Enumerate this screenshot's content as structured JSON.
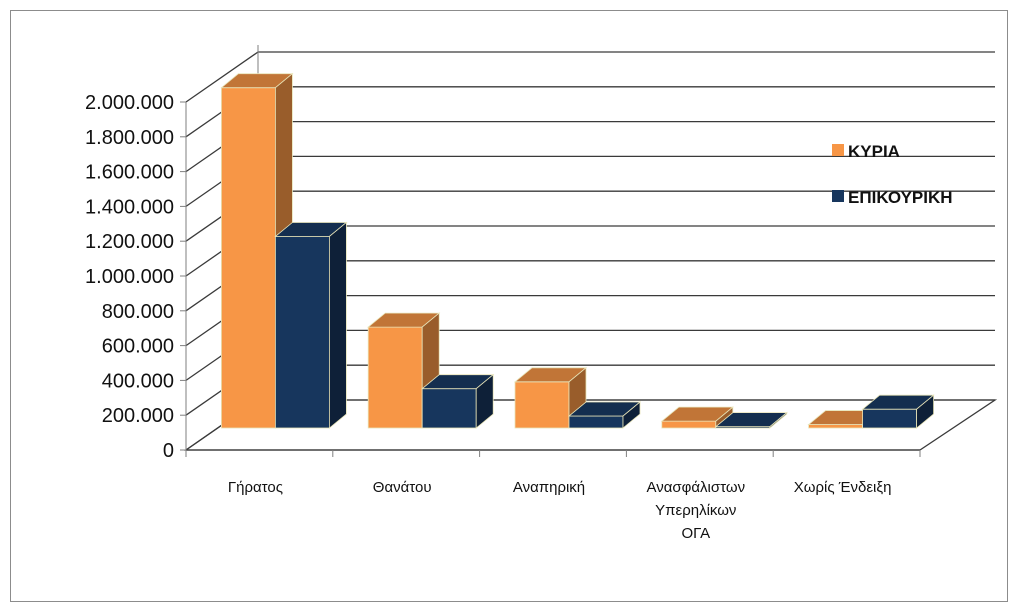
{
  "chart_data": {
    "type": "bar",
    "style": "3d-clustered-column",
    "categories": [
      [
        "Γήρατος"
      ],
      [
        "Θανάτου"
      ],
      [
        "Αναπηρική"
      ],
      [
        "Ανασφάλιστων",
        "Υπερηλίκων",
        "ΟΓΑ"
      ],
      [
        "Χωρίς Ένδειξη"
      ]
    ],
    "series": [
      {
        "name": "ΚΥΡΙΑ",
        "values": [
          1990000,
          590000,
          270000,
          40000,
          20000
        ],
        "color": "#F79646"
      },
      {
        "name": "ΕΠΙΚΟΥΡΙΚΗ",
        "values": [
          1120000,
          230000,
          70000,
          8000,
          110000
        ],
        "color": "#17365D"
      }
    ],
    "ylim": [
      0,
      2000000
    ],
    "yticks": [
      "0",
      "200.000",
      "400.000",
      "600.000",
      "800.000",
      "1.000.000",
      "1.200.000",
      "1.400.000",
      "1.600.000",
      "1.800.000",
      "2.000.000"
    ],
    "grid": true,
    "legend_position": "right"
  }
}
